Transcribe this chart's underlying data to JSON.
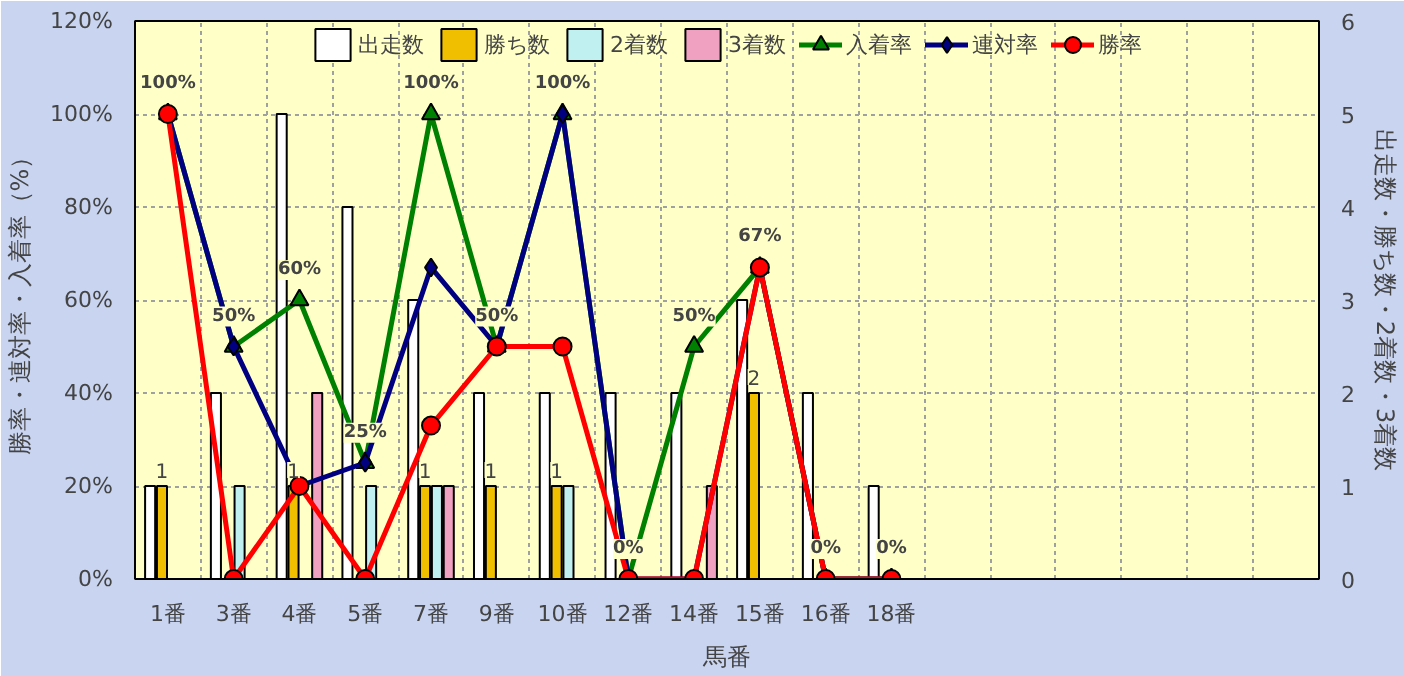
{
  "chart_data": {
    "type": "bar",
    "xlabel": "馬番",
    "ylabel": "勝率・連対率・入着率（%）",
    "y2label": "出走数・勝ち数・2着数・3着数",
    "categories": [
      "1番",
      "3番",
      "4番",
      "5番",
      "7番",
      "9番",
      "10番",
      "12番",
      "14番",
      "15番",
      "16番",
      "18番",
      null,
      null,
      null,
      null,
      null,
      null
    ],
    "series": [
      {
        "name": "出走数",
        "axis": "y2",
        "color": "#ffffff",
        "values": [
          1,
          2,
          5,
          4,
          3,
          2,
          2,
          2,
          2,
          3,
          2,
          1,
          null,
          null,
          null,
          null,
          null,
          null
        ]
      },
      {
        "name": "勝ち数",
        "axis": "y2",
        "color": "#f0c000",
        "values": [
          1,
          0,
          1,
          0,
          1,
          1,
          1,
          0,
          0,
          2,
          0,
          0,
          null,
          null,
          null,
          null,
          null,
          null
        ],
        "value_labels": [
          "1",
          null,
          "1",
          null,
          "1",
          "1",
          "1",
          null,
          null,
          "2",
          null,
          null,
          null,
          null,
          null,
          null,
          null,
          null
        ]
      },
      {
        "name": "2着数",
        "axis": "y2",
        "color": "#c0f0f0",
        "values": [
          0,
          1,
          0,
          1,
          1,
          0,
          1,
          0,
          0,
          0,
          0,
          0,
          null,
          null,
          null,
          null,
          null,
          null
        ]
      },
      {
        "name": "3着数",
        "axis": "y2",
        "color": "#f0a0c0",
        "values": [
          0,
          0,
          2,
          0,
          1,
          0,
          0,
          0,
          1,
          0,
          0,
          0,
          null,
          null,
          null,
          null,
          null,
          null
        ]
      },
      {
        "name": "入着率",
        "type": "line",
        "marker": "triangle",
        "color": "#008000",
        "values": [
          100,
          50,
          60,
          25,
          100,
          50,
          100,
          0,
          50,
          67,
          0,
          0,
          null,
          null,
          null,
          null,
          null,
          null
        ],
        "value_labels": [
          "100%",
          "50%",
          "60%",
          "25%",
          "100%",
          "50%",
          "100%",
          "0%",
          "50%",
          "67%",
          "0%",
          "0%",
          null,
          null,
          null,
          null,
          null,
          null
        ]
      },
      {
        "name": "連対率",
        "type": "line",
        "marker": "diamond",
        "color": "#000080",
        "values": [
          100,
          50,
          20,
          25,
          67,
          50,
          100,
          0,
          0,
          67,
          0,
          0,
          null,
          null,
          null,
          null,
          null,
          null
        ]
      },
      {
        "name": "勝率",
        "type": "line",
        "marker": "circle",
        "color": "#ff0000",
        "values": [
          100,
          0,
          20,
          0,
          33,
          50,
          50,
          0,
          0,
          67,
          0,
          0,
          null,
          null,
          null,
          null,
          null,
          null
        ]
      }
    ],
    "ylim": [
      0,
      120
    ],
    "yticks": [
      {
        "value": 0,
        "label": "0%"
      },
      {
        "value": 20,
        "label": "20%"
      },
      {
        "value": 40,
        "label": "40%"
      },
      {
        "value": 60,
        "label": "60%"
      },
      {
        "value": 80,
        "label": "80%"
      },
      {
        "value": 100,
        "label": "100%"
      },
      {
        "value": 120,
        "label": "120%"
      }
    ],
    "y2lim": [
      0,
      6
    ],
    "y2ticks": [
      0,
      1,
      2,
      3,
      4,
      5,
      6
    ],
    "grid": true,
    "legend": "top",
    "line_style": "solid"
  }
}
